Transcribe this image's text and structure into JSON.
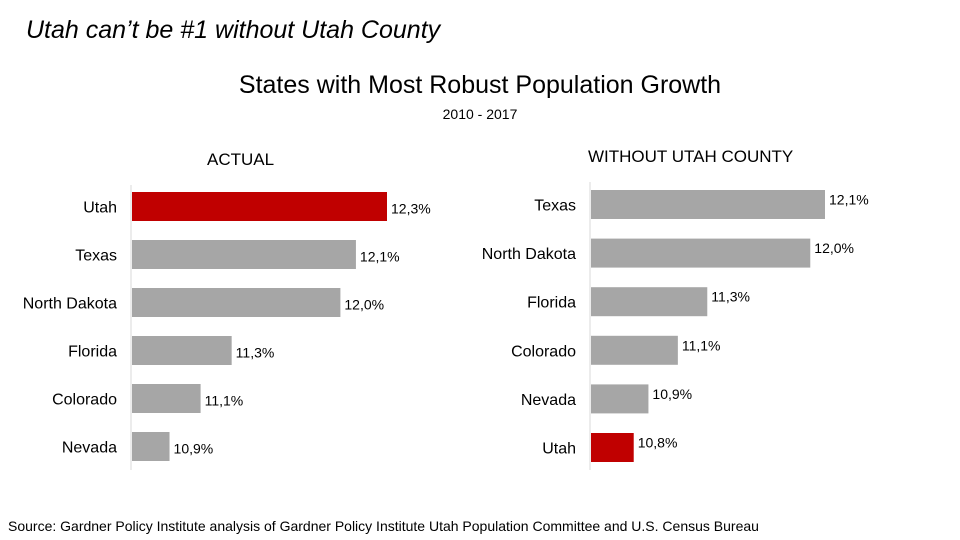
{
  "headline": "Utah can’t be #1 without Utah County",
  "chart_data": [
    {
      "type": "bar",
      "orientation": "horizontal",
      "title": "States with Most Robust Population Growth",
      "subtitle": "2010 - 2017",
      "panel_title": "ACTUAL",
      "categories": [
        "Utah",
        "Texas",
        "North Dakota",
        "Florida",
        "Colorado",
        "Nevada"
      ],
      "values": [
        12.3,
        12.1,
        12.0,
        11.3,
        11.1,
        10.9
      ],
      "labels": [
        "12,3%",
        "12,1%",
        "12,0%",
        "11,3%",
        "11,1%",
        "10,9%"
      ],
      "highlight": "Utah",
      "xlim": [
        10.8,
        12.3
      ]
    },
    {
      "type": "bar",
      "orientation": "horizontal",
      "panel_title": "WITHOUT UTAH COUNTY",
      "categories": [
        "Texas",
        "North Dakota",
        "Florida",
        "Colorado",
        "Nevada",
        "Utah"
      ],
      "values": [
        12.1,
        12.0,
        11.3,
        11.1,
        10.9,
        10.8
      ],
      "labels": [
        "12,1%",
        "12,0%",
        "11,3%",
        "11,1%",
        "10,9%",
        "10,8%"
      ],
      "highlight": "Utah",
      "xlim": [
        10.7,
        12.1
      ]
    }
  ],
  "colors": {
    "bar": "#a6a6a6",
    "highlight": "#c00000",
    "axis": "#d9d9d9"
  },
  "source": "Source:  Gardner Policy Institute analysis of Gardner Policy Institute Utah Population Committee and U.S. Census Bureau"
}
